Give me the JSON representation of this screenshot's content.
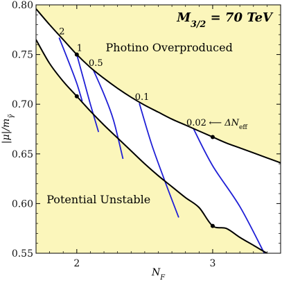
{
  "chart_data": {
    "type": "line",
    "title": "M_{3/2} = 70 TeV",
    "title_parts": {
      "symbol": "M",
      "subscript": "3/2",
      "value": " = 70 TeV"
    },
    "xlabel": "N_F",
    "xlabel_parts": {
      "symbol": "N",
      "subscript": "F"
    },
    "ylabel": "|μ|/m_γ̃",
    "ylabel_text": "|μ|/m",
    "ylabel_sub": "γ̃",
    "xlim": [
      1.7,
      3.5
    ],
    "ylim": [
      0.55,
      0.8
    ],
    "x_ticks": [
      2,
      3
    ],
    "x_tick_labels": [
      "2",
      "3"
    ],
    "y_ticks": [
      0.55,
      0.6,
      0.65,
      0.7,
      0.75,
      0.8
    ],
    "y_tick_labels": [
      "0.55",
      "0.60",
      "0.65",
      "0.70",
      "0.75",
      "0.80"
    ],
    "grid": false,
    "colors": {
      "excluded_region": "#fbf6bb",
      "allowed_region": "#ffffff",
      "bound_curves": "#000000",
      "delta_neff_contours": "#1f1fd6",
      "markers": "#000000"
    },
    "region_labels": [
      {
        "text": "Photino Overproduced",
        "x": 2.68,
        "y": 0.7575
      },
      {
        "text": "Potential Unstable",
        "x": 2.16,
        "y": 0.6045
      }
    ],
    "upper_bound": {
      "name": "Photino Overproduced boundary",
      "x": [
        1.7,
        1.8,
        1.9,
        2.0,
        2.1,
        2.2,
        2.3,
        2.4,
        2.5,
        2.6,
        2.7,
        2.8,
        2.9,
        3.0,
        3.1,
        3.2,
        3.3,
        3.4,
        3.5
      ],
      "y": [
        0.796,
        0.78,
        0.765,
        0.75,
        0.737,
        0.726,
        0.716,
        0.707,
        0.699,
        0.692,
        0.685,
        0.679,
        0.673,
        0.667,
        0.661,
        0.656,
        0.651,
        0.646,
        0.641
      ]
    },
    "lower_bound": {
      "name": "Potential Unstable boundary",
      "x": [
        1.7,
        1.8,
        1.9,
        2.0,
        2.1,
        2.2,
        2.3,
        2.4,
        2.5,
        2.6,
        2.7,
        2.8,
        2.9,
        3.0,
        3.1,
        3.2,
        3.3,
        3.4,
        3.5
      ],
      "y": [
        0.765,
        0.741,
        0.723,
        0.708,
        0.693,
        0.679,
        0.666,
        0.653,
        0.64,
        0.628,
        0.617,
        0.606,
        0.596,
        0.5775,
        0.575,
        0.566,
        0.558,
        0.55,
        0.543
      ]
    },
    "contours_title": "⟵ ΔN_eff",
    "contours": [
      {
        "label": "2",
        "x": [
          1.87,
          1.945,
          2.0,
          2.04
        ],
        "y": [
          0.767,
          0.741,
          0.721,
          0.703
        ]
      },
      {
        "label": "1",
        "x": [
          2.0,
          2.05,
          2.1,
          2.16
        ],
        "y": [
          0.75,
          0.725,
          0.7,
          0.672
        ]
      },
      {
        "label": "0.5",
        "x": [
          2.12,
          2.2,
          2.27,
          2.34
        ],
        "y": [
          0.735,
          0.71,
          0.684,
          0.645
        ]
      },
      {
        "label": "0.1",
        "x": [
          2.46,
          2.55,
          2.65,
          2.75
        ],
        "y": [
          0.701,
          0.66,
          0.622,
          0.586
        ]
      },
      {
        "label": "0.02",
        "x": [
          2.86,
          3.0,
          3.2,
          3.38
        ],
        "y": [
          0.675,
          0.638,
          0.597,
          0.55
        ]
      }
    ],
    "points": [
      {
        "x": 2.0,
        "y": 0.75
      },
      {
        "x": 2.0,
        "y": 0.708
      },
      {
        "x": 3.0,
        "y": 0.667
      },
      {
        "x": 3.0,
        "y": 0.5775
      }
    ]
  }
}
